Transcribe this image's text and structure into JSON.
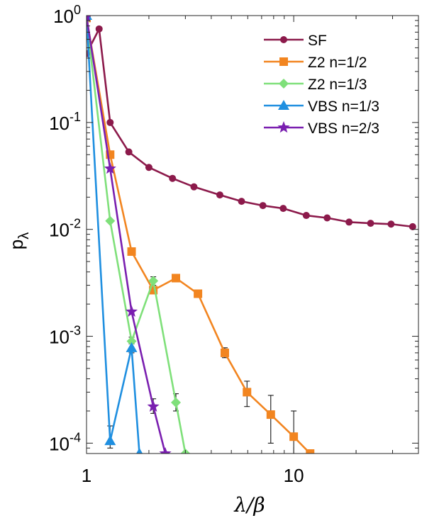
{
  "chart_data": {
    "type": "line",
    "title": "",
    "xlabel": "λ/β",
    "ylabel": "p_λ",
    "xscale": "log",
    "yscale": "log",
    "xlim": [
      1,
      40
    ],
    "ylim": [
      8e-05,
      1
    ],
    "xticks": [
      {
        "value": 1,
        "label": "1"
      },
      {
        "value": 10,
        "label": "10"
      }
    ],
    "yticks": [
      {
        "value": 1,
        "base": "10",
        "exp": "0"
      },
      {
        "value": 0.1,
        "base": "10",
        "exp": "-1"
      },
      {
        "value": 0.01,
        "base": "10",
        "exp": "-2"
      },
      {
        "value": 0.001,
        "base": "10",
        "exp": "-3"
      },
      {
        "value": 0.0001,
        "base": "10",
        "exp": "-4"
      }
    ],
    "grid": false,
    "legend": "top-right",
    "series": [
      {
        "name": "SF",
        "color": "#8C1A4B",
        "marker": "circle",
        "x": [
          1,
          1.15,
          1.3,
          1.6,
          2.0,
          2.6,
          3.3,
          4.4,
          5.6,
          7.1,
          8.9,
          11.5,
          14.5,
          18.5,
          23.5,
          29.5,
          37.5
        ],
        "y": [
          0.44,
          0.75,
          0.1,
          0.053,
          0.038,
          0.03,
          0.025,
          0.021,
          0.0183,
          0.0167,
          0.0157,
          0.0135,
          0.0128,
          0.0117,
          0.0114,
          0.0112,
          0.0106
        ],
        "err": []
      },
      {
        "name": "Z2 n=1/2",
        "color": "#F28520",
        "marker": "square",
        "x": [
          1,
          1.3,
          1.65,
          2.1,
          2.7,
          3.45,
          4.65,
          5.95,
          7.75,
          10.0,
          12.0
        ],
        "y": [
          0.95,
          0.05,
          0.0062,
          0.0027,
          0.0035,
          0.0025,
          0.0007,
          0.0003,
          0.000185,
          0.000115,
          8e-05
        ],
        "err": [
          {
            "x": 4.65,
            "lo": 0.00063,
            "hi": 0.00078
          },
          {
            "x": 5.95,
            "lo": 0.00022,
            "hi": 0.00038
          },
          {
            "x": 7.75,
            "lo": 0.0001,
            "hi": 0.00028
          },
          {
            "x": 10.0,
            "lo": 6e-05,
            "hi": 0.0002
          }
        ]
      },
      {
        "name": "Z2 n=1/3",
        "color": "#7FE07A",
        "marker": "diamond",
        "x": [
          1,
          1.3,
          1.65,
          2.1,
          2.7,
          3.0
        ],
        "y": [
          0.93,
          0.012,
          0.0009,
          0.0033,
          0.00024,
          8e-05
        ],
        "err": [
          {
            "x": 1.65,
            "lo": 0.00085,
            "hi": 0.00098
          },
          {
            "x": 2.1,
            "lo": 0.003,
            "hi": 0.0036
          },
          {
            "x": 2.7,
            "lo": 0.0002,
            "hi": 0.00029
          }
        ]
      },
      {
        "name": "VBS n=1/3",
        "color": "#1F8FE0",
        "marker": "triangle",
        "x": [
          1,
          1.3,
          1.65,
          1.8
        ],
        "y": [
          1.0,
          0.000105,
          0.00078,
          8e-05
        ],
        "err": [
          {
            "x": 1.3,
            "lo": 9e-05,
            "hi": 0.000145
          },
          {
            "x": 1.65,
            "lo": 0.0007,
            "hi": 0.00088
          }
        ]
      },
      {
        "name": "VBS n=2/3",
        "color": "#7A1FB0",
        "marker": "star",
        "x": [
          1,
          1.3,
          1.65,
          2.1,
          2.4
        ],
        "y": [
          0.98,
          0.037,
          0.0017,
          0.00022,
          8e-05
        ],
        "err": [
          {
            "x": 2.1,
            "lo": 0.00019,
            "hi": 0.00026
          }
        ]
      }
    ]
  }
}
